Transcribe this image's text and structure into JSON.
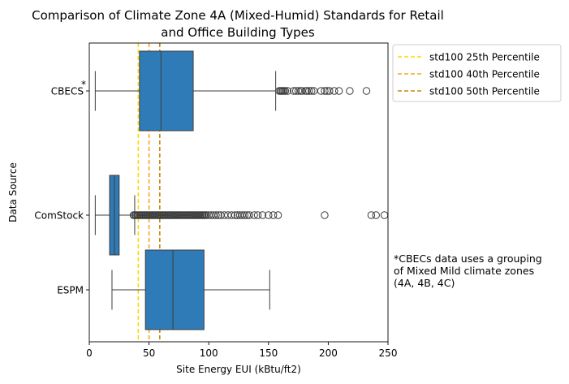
{
  "chart_data": {
    "type": "boxplot",
    "title_line1": "Comparison of Climate Zone 4A (Mixed-Humid) Standards for Retail",
    "title_line2": "and Office Building Types",
    "xlabel": "Site Energy EUI (kBtu/ft2)",
    "ylabel": "Data Source",
    "xlim": [
      0,
      250
    ],
    "xticks": [
      0,
      50,
      100,
      150,
      200,
      250
    ],
    "grid": false,
    "orientation": "horizontal",
    "box_color": "#2f7bb7",
    "categories": [
      "CBECS",
      "ComStock",
      "ESPM"
    ],
    "category_marker": "*",
    "boxes": [
      {
        "name": "CBECS",
        "whisker_low": 5,
        "q1": 42,
        "median": 60,
        "q3": 87,
        "whisker_high": 156,
        "outliers": [
          159,
          160,
          161,
          162,
          163,
          164,
          166,
          171,
          173,
          175,
          177,
          178,
          181,
          182,
          184,
          186,
          188,
          194,
          197,
          199,
          201,
          205,
          209,
          218,
          232
        ]
      },
      {
        "name": "ComStock",
        "whisker_low": 5,
        "q1": 17,
        "median": 21,
        "q3": 25,
        "whisker_high": 38,
        "outliers": [
          37,
          38,
          39,
          40,
          41,
          42,
          43,
          44,
          45,
          46,
          47,
          48,
          49,
          50,
          51,
          52,
          53,
          54,
          55,
          56,
          57,
          58,
          59,
          60,
          61,
          62,
          63,
          64,
          65,
          66,
          67,
          68,
          69,
          70,
          71,
          72,
          73,
          74,
          75,
          76,
          77,
          78,
          79,
          80,
          81,
          82,
          83,
          84,
          85,
          86,
          87,
          88,
          89,
          90,
          91,
          92,
          93,
          94,
          95,
          96,
          97,
          98,
          100,
          102,
          104,
          106,
          108,
          110,
          113,
          116,
          119,
          122,
          124,
          126,
          128,
          130,
          132,
          134,
          138,
          141,
          145,
          150,
          154,
          158,
          197,
          236,
          240,
          247
        ]
      },
      {
        "name": "ESPM",
        "whisker_low": 19,
        "q1": 47,
        "median": 70,
        "q3": 96,
        "whisker_high": 151,
        "outliers": []
      }
    ],
    "reference_lines": [
      {
        "label": "std100 25th Percentile",
        "value": 41,
        "color": "#ffd700"
      },
      {
        "label": "std100 40th Percentile",
        "value": 50,
        "color": "#f0a821"
      },
      {
        "label": "std100 50th Percentile",
        "value": 59,
        "color": "#c48a0c"
      }
    ],
    "legend_position": "outside-top-right",
    "annotation_lines": [
      "*CBECs data uses a grouping",
      "of Mixed Mild climate zones",
      "(4A, 4B, 4C)"
    ]
  }
}
